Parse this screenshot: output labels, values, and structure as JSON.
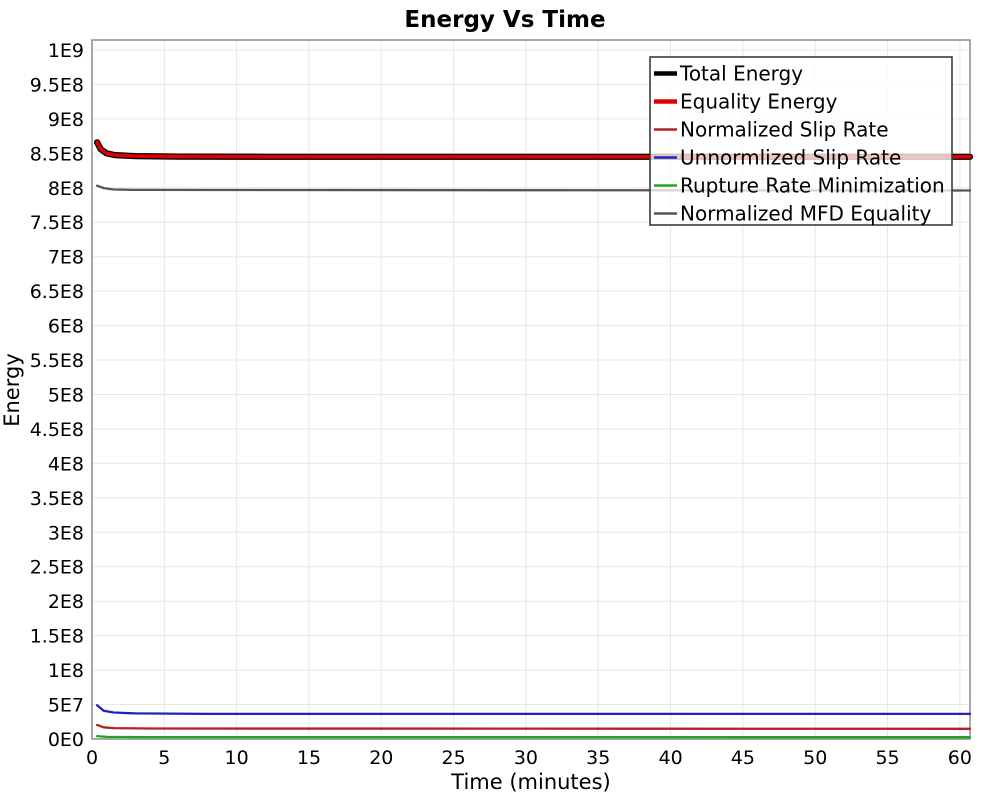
{
  "chart_data": {
    "type": "line",
    "title": "Energy Vs Time",
    "xlabel": "Time (minutes)",
    "ylabel": "Energy",
    "xlim": [
      0,
      60.7
    ],
    "ylim": [
      0,
      1014500000
    ],
    "grid": true,
    "legend_position": "top-right",
    "colors": {
      "grid": "#e7e7e7",
      "plot_border": "#828282",
      "legend_border": "#3c3c3c",
      "legend_background": "rgba(255,255,255,0.76)"
    },
    "x_ticks": [
      {
        "v": 0,
        "label": "0"
      },
      {
        "v": 5,
        "label": "5"
      },
      {
        "v": 10,
        "label": "10"
      },
      {
        "v": 15,
        "label": "15"
      },
      {
        "v": 20,
        "label": "20"
      },
      {
        "v": 25,
        "label": "25"
      },
      {
        "v": 30,
        "label": "30"
      },
      {
        "v": 35,
        "label": "35"
      },
      {
        "v": 40,
        "label": "40"
      },
      {
        "v": 45,
        "label": "45"
      },
      {
        "v": 50,
        "label": "50"
      },
      {
        "v": 55,
        "label": "55"
      },
      {
        "v": 60,
        "label": "60"
      }
    ],
    "y_ticks": [
      {
        "v": 0,
        "label": "0E0"
      },
      {
        "v": 50000000,
        "label": "5E7"
      },
      {
        "v": 100000000,
        "label": "1E8"
      },
      {
        "v": 150000000,
        "label": "1.5E8"
      },
      {
        "v": 200000000,
        "label": "2E8"
      },
      {
        "v": 250000000,
        "label": "2.5E8"
      },
      {
        "v": 300000000,
        "label": "3E8"
      },
      {
        "v": 350000000,
        "label": "3.5E8"
      },
      {
        "v": 400000000,
        "label": "4E8"
      },
      {
        "v": 450000000,
        "label": "4.5E8"
      },
      {
        "v": 500000000,
        "label": "5E8"
      },
      {
        "v": 550000000,
        "label": "5.5E8"
      },
      {
        "v": 600000000,
        "label": "6E8"
      },
      {
        "v": 650000000,
        "label": "6.5E8"
      },
      {
        "v": 700000000,
        "label": "7E8"
      },
      {
        "v": 750000000,
        "label": "7.5E8"
      },
      {
        "v": 800000000,
        "label": "8E8"
      },
      {
        "v": 850000000,
        "label": "8.5E8"
      },
      {
        "v": 900000000,
        "label": "9E8"
      },
      {
        "v": 950000000,
        "label": "9.5E8"
      },
      {
        "v": 1000000000,
        "label": "1E9"
      }
    ],
    "series": [
      {
        "name": "Total Energy",
        "color": "#000000",
        "width": 6.2,
        "legend_width": 4.5,
        "points": [
          [
            0.35,
            866000000
          ],
          [
            0.6,
            856000000
          ],
          [
            1.0,
            850000000
          ],
          [
            1.6,
            847500000
          ],
          [
            3,
            846000000
          ],
          [
            6,
            845300000
          ],
          [
            12,
            845000000
          ],
          [
            60.7,
            845000000
          ]
        ]
      },
      {
        "name": "Equality Energy",
        "color": "#e00000",
        "width": 3.6,
        "legend_width": 4.5,
        "points": [
          [
            0.35,
            866000000
          ],
          [
            0.6,
            856000000
          ],
          [
            1.0,
            850000000
          ],
          [
            1.6,
            847500000
          ],
          [
            3,
            846000000
          ],
          [
            6,
            845300000
          ],
          [
            12,
            845000000
          ],
          [
            60.7,
            845000000
          ]
        ]
      },
      {
        "name": "Normalized Slip Rate",
        "color": "#b22222",
        "width": 2.3,
        "legend_width": 2.5,
        "points": [
          [
            0.35,
            20500000
          ],
          [
            0.8,
            17000000
          ],
          [
            1.5,
            15800000
          ],
          [
            4,
            15200000
          ],
          [
            60.7,
            14800000
          ]
        ]
      },
      {
        "name": "Unnormlized Slip Rate",
        "color": "#2222bb",
        "width": 2.3,
        "legend_width": 2.5,
        "points": [
          [
            0.35,
            49000000
          ],
          [
            0.8,
            41000000
          ],
          [
            1.5,
            38500000
          ],
          [
            3,
            37200000
          ],
          [
            8,
            36500000
          ],
          [
            60.7,
            36500000
          ]
        ]
      },
      {
        "name": "Rupture Rate Minimization",
        "color": "#1fa81f",
        "width": 2.3,
        "legend_width": 2.5,
        "points": [
          [
            0.35,
            4200000
          ],
          [
            1,
            3000000
          ],
          [
            4,
            2700000
          ],
          [
            60.7,
            2600000
          ]
        ]
      },
      {
        "name": "Normalized MFD Equality",
        "color": "#555555",
        "width": 2.3,
        "legend_width": 2.5,
        "points": [
          [
            0.35,
            803000000
          ],
          [
            0.8,
            799500000
          ],
          [
            1.5,
            797500000
          ],
          [
            3,
            797000000
          ],
          [
            60.7,
            796000000
          ]
        ]
      }
    ]
  }
}
